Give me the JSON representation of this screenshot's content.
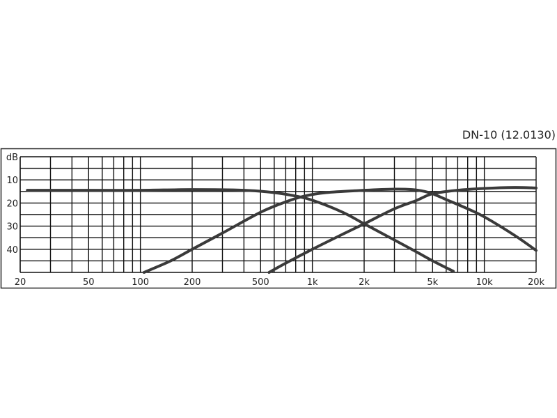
{
  "title": "DN-10 (12.0130)",
  "chart_data": {
    "type": "line",
    "title": "DN-10 (12.0130)",
    "xlabel": "",
    "ylabel": "dB",
    "x_scale": "log",
    "xlim": [
      20,
      20000
    ],
    "ylim": [
      0,
      50
    ],
    "y_inverted": true,
    "grid": true,
    "x_tick_labels": [
      "20",
      "50",
      "100",
      "200",
      "500",
      "1k",
      "2k",
      "5k",
      "10k",
      "20k"
    ],
    "x_ticks": [
      20,
      50,
      100,
      200,
      500,
      1000,
      2000,
      5000,
      10000,
      20000
    ],
    "y_tick_labels": [
      "dB",
      "10",
      "20",
      "30",
      "40"
    ],
    "y_ticks": [
      0,
      10,
      20,
      30,
      40
    ],
    "line_color": "#3a3a3a",
    "series": [
      {
        "x": [
          22,
          50,
          100,
          200,
          400,
          600,
          800,
          1000,
          1500,
          2000,
          3000,
          4000,
          5000,
          6600
        ],
        "y": [
          14.5,
          14.5,
          14.5,
          14.2,
          14.5,
          15.5,
          17,
          18.8,
          24,
          29,
          36,
          41,
          45,
          49.5
        ]
      },
      {
        "x": [
          105,
          150,
          200,
          300,
          500,
          700,
          900,
          1200,
          2000,
          3000,
          3800,
          4500,
          5000,
          6000,
          8000,
          10000,
          15000,
          20000
        ],
        "y": [
          50,
          45,
          40,
          33,
          24,
          19.5,
          17,
          15.5,
          14.5,
          14,
          14.2,
          15,
          16,
          18.5,
          22.5,
          26,
          34,
          40.5
        ]
      },
      {
        "x": [
          560,
          700,
          1000,
          1500,
          2000,
          3000,
          4000,
          5000,
          7000,
          10000,
          15000,
          20000
        ],
        "y": [
          50,
          46,
          40,
          33.5,
          29,
          22.5,
          19,
          16,
          14.5,
          13.7,
          13.3,
          13.5
        ]
      }
    ]
  }
}
